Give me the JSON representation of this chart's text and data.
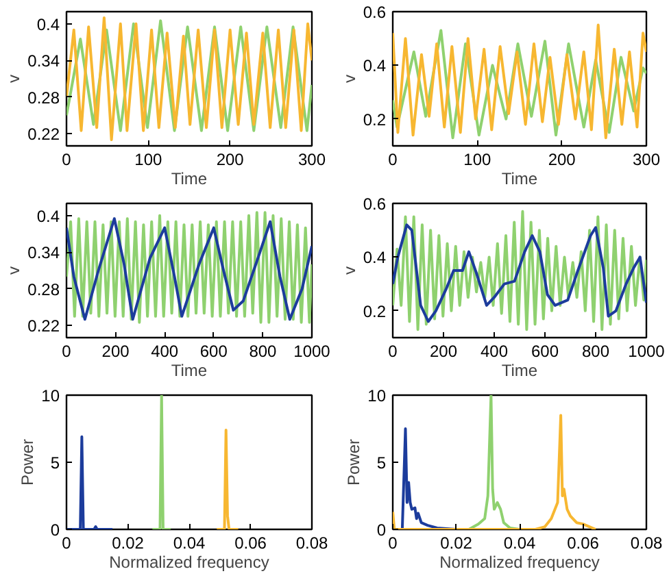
{
  "chart_data": [
    {
      "type": "line",
      "xlabel": "Time",
      "ylabel": "v",
      "xlim": [
        0,
        300
      ],
      "ylim": [
        0.2,
        0.42
      ],
      "xticks": [
        0,
        100,
        200,
        300
      ],
      "yticks": [
        0.22,
        0.28,
        0.34,
        0.4
      ],
      "series": [
        {
          "color": "#8fd16f",
          "x": [
            0,
            17,
            33,
            49,
            66,
            82,
            99,
            115,
            132,
            148,
            165,
            181,
            197,
            213,
            229,
            245,
            262,
            277,
            294,
            300
          ],
          "values": [
            0.25,
            0.375,
            0.235,
            0.39,
            0.225,
            0.4,
            0.23,
            0.405,
            0.225,
            0.395,
            0.225,
            0.395,
            0.225,
            0.395,
            0.225,
            0.395,
            0.23,
            0.395,
            0.225,
            0.3
          ]
        },
        {
          "color": "#f7b731",
          "x": [
            0,
            9,
            18,
            27,
            37,
            46,
            55,
            66,
            74,
            85,
            94,
            104,
            113,
            123,
            133,
            143,
            151,
            161,
            171,
            181,
            190,
            200,
            210,
            220,
            229,
            240,
            249,
            259,
            268,
            278,
            287,
            295,
            300
          ],
          "values": [
            0.28,
            0.39,
            0.225,
            0.395,
            0.23,
            0.41,
            0.21,
            0.4,
            0.225,
            0.4,
            0.225,
            0.39,
            0.23,
            0.385,
            0.23,
            0.38,
            0.235,
            0.39,
            0.23,
            0.39,
            0.23,
            0.39,
            0.235,
            0.385,
            0.235,
            0.385,
            0.23,
            0.39,
            0.23,
            0.39,
            0.225,
            0.4,
            0.34
          ]
        }
      ]
    },
    {
      "type": "line",
      "xlabel": "Time",
      "ylabel": "v",
      "xlim": [
        0,
        300
      ],
      "ylim": [
        0.1,
        0.6
      ],
      "xticks": [
        0,
        100,
        200,
        300
      ],
      "yticks": [
        0.2,
        0.4,
        0.6
      ],
      "series": [
        {
          "color": "#8fd16f",
          "x": [
            0,
            5,
            25,
            39,
            57,
            71,
            86,
            102,
            118,
            134,
            148,
            164,
            180,
            193,
            208,
            226,
            240,
            256,
            270,
            285,
            296,
            300
          ],
          "values": [
            0.27,
            0.17,
            0.45,
            0.21,
            0.53,
            0.13,
            0.48,
            0.14,
            0.4,
            0.2,
            0.48,
            0.21,
            0.49,
            0.14,
            0.48,
            0.17,
            0.42,
            0.15,
            0.43,
            0.23,
            0.39,
            0.37
          ]
        },
        {
          "color": "#f7b731",
          "x": [
            0,
            6,
            15,
            24,
            34,
            43,
            52,
            61,
            70,
            80,
            89,
            98,
            108,
            117,
            127,
            137,
            147,
            157,
            167,
            177,
            186,
            196,
            206,
            216,
            226,
            235,
            243,
            252,
            262,
            271,
            280,
            289,
            296,
            300
          ],
          "values": [
            0.52,
            0.15,
            0.5,
            0.14,
            0.44,
            0.21,
            0.48,
            0.17,
            0.47,
            0.15,
            0.5,
            0.2,
            0.46,
            0.16,
            0.47,
            0.22,
            0.45,
            0.18,
            0.48,
            0.19,
            0.43,
            0.18,
            0.44,
            0.2,
            0.45,
            0.16,
            0.55,
            0.13,
            0.46,
            0.18,
            0.45,
            0.17,
            0.52,
            0.45
          ]
        }
      ]
    },
    {
      "type": "line",
      "xlabel": "Time",
      "ylabel": "v",
      "xlim": [
        0,
        1000
      ],
      "ylim": [
        0.2,
        0.42
      ],
      "xticks": [
        0,
        200,
        400,
        600,
        800,
        1000
      ],
      "yticks": [
        0.22,
        0.28,
        0.34,
        0.4
      ],
      "series": [
        {
          "color": "#8fd16f",
          "x": [
            0,
            17,
            33,
            50,
            66,
            83,
            99,
            116,
            132,
            149,
            165,
            182,
            198,
            215,
            231,
            248,
            264,
            281,
            297,
            314,
            330,
            347,
            363,
            380,
            396,
            413,
            429,
            446,
            462,
            479,
            495,
            512,
            528,
            545,
            561,
            578,
            594,
            611,
            627,
            644,
            660,
            677,
            693,
            710,
            726,
            743,
            759,
            776,
            792,
            809,
            825,
            842,
            858,
            875,
            891,
            908,
            924,
            941,
            957,
            974,
            990,
            1000
          ],
          "values": [
            0.3,
            0.39,
            0.235,
            0.395,
            0.235,
            0.39,
            0.24,
            0.39,
            0.235,
            0.385,
            0.24,
            0.39,
            0.235,
            0.39,
            0.235,
            0.395,
            0.23,
            0.39,
            0.225,
            0.385,
            0.235,
            0.39,
            0.235,
            0.4,
            0.235,
            0.39,
            0.24,
            0.39,
            0.235,
            0.385,
            0.235,
            0.385,
            0.24,
            0.39,
            0.24,
            0.385,
            0.235,
            0.39,
            0.235,
            0.39,
            0.24,
            0.39,
            0.235,
            0.39,
            0.235,
            0.4,
            0.24,
            0.405,
            0.225,
            0.405,
            0.225,
            0.4,
            0.235,
            0.395,
            0.23,
            0.39,
            0.23,
            0.385,
            0.225,
            0.38,
            0.225,
            0.32
          ]
        },
        {
          "color": "#1c3c9c",
          "x": [
            0,
            30,
            75,
            130,
            195,
            235,
            270,
            340,
            400,
            440,
            470,
            540,
            600,
            640,
            680,
            720,
            780,
            830,
            870,
            910,
            960,
            1000
          ],
          "values": [
            0.38,
            0.3,
            0.23,
            0.31,
            0.395,
            0.32,
            0.23,
            0.33,
            0.38,
            0.3,
            0.235,
            0.32,
            0.38,
            0.31,
            0.245,
            0.26,
            0.33,
            0.39,
            0.3,
            0.23,
            0.28,
            0.35
          ]
        }
      ]
    },
    {
      "type": "line",
      "xlabel": "Time",
      "ylabel": "v",
      "xlim": [
        0,
        1000
      ],
      "ylim": [
        0.1,
        0.6
      ],
      "xticks": [
        0,
        200,
        400,
        600,
        800,
        1000
      ],
      "yticks": [
        0.2,
        0.4,
        0.6
      ],
      "series": [
        {
          "color": "#8fd16f",
          "x": [
            0,
            17,
            33,
            50,
            66,
            83,
            99,
            116,
            132,
            149,
            165,
            182,
            198,
            215,
            231,
            248,
            264,
            281,
            297,
            314,
            330,
            347,
            363,
            380,
            396,
            413,
            429,
            446,
            462,
            479,
            495,
            512,
            528,
            545,
            561,
            578,
            594,
            611,
            627,
            644,
            660,
            677,
            693,
            710,
            726,
            743,
            759,
            776,
            792,
            809,
            825,
            842,
            858,
            875,
            891,
            908,
            924,
            941,
            957,
            974,
            990,
            1000
          ],
          "values": [
            0.22,
            0.43,
            0.22,
            0.55,
            0.16,
            0.55,
            0.13,
            0.52,
            0.15,
            0.5,
            0.17,
            0.48,
            0.18,
            0.45,
            0.2,
            0.44,
            0.22,
            0.42,
            0.25,
            0.4,
            0.27,
            0.38,
            0.25,
            0.4,
            0.22,
            0.45,
            0.19,
            0.48,
            0.16,
            0.53,
            0.15,
            0.57,
            0.13,
            0.53,
            0.15,
            0.5,
            0.17,
            0.47,
            0.2,
            0.44,
            0.22,
            0.4,
            0.25,
            0.38,
            0.25,
            0.42,
            0.2,
            0.5,
            0.16,
            0.55,
            0.13,
            0.52,
            0.15,
            0.5,
            0.17,
            0.47,
            0.2,
            0.44,
            0.22,
            0.4,
            0.24,
            0.39
          ]
        },
        {
          "color": "#1c3c9c",
          "x": [
            0,
            20,
            55,
            75,
            110,
            140,
            170,
            210,
            240,
            275,
            300,
            330,
            370,
            400,
            440,
            480,
            520,
            550,
            580,
            610,
            640,
            690,
            730,
            780,
            800,
            830,
            850,
            880,
            920,
            950,
            975,
            1000
          ],
          "values": [
            0.3,
            0.4,
            0.52,
            0.5,
            0.22,
            0.16,
            0.2,
            0.28,
            0.35,
            0.35,
            0.42,
            0.34,
            0.22,
            0.25,
            0.3,
            0.31,
            0.42,
            0.48,
            0.42,
            0.26,
            0.22,
            0.24,
            0.35,
            0.48,
            0.51,
            0.36,
            0.18,
            0.2,
            0.3,
            0.36,
            0.4,
            0.23
          ]
        }
      ]
    },
    {
      "type": "line",
      "xlabel": "Normalized frequency",
      "ylabel": "Power",
      "xlim": [
        0,
        0.08
      ],
      "ylim": [
        0,
        10
      ],
      "xticks": [
        0,
        0.02,
        0.04,
        0.06,
        0.08
      ],
      "yticks": [
        0,
        5,
        10
      ],
      "series": [
        {
          "color": "#1c3c9c",
          "x": [
            0,
            0.0045,
            0.005,
            0.0055,
            0.009,
            0.0095,
            0.01,
            0.015
          ],
          "values": [
            0,
            0,
            6.9,
            0,
            0,
            0.2,
            0,
            0
          ]
        },
        {
          "color": "#8fd16f",
          "x": [
            0.028,
            0.0305,
            0.031,
            0.0315,
            0.034
          ],
          "values": [
            0,
            0,
            10,
            0,
            0
          ]
        },
        {
          "color": "#f7b731",
          "x": [
            0.049,
            0.0515,
            0.052,
            0.0525,
            0.053,
            0.056
          ],
          "values": [
            0,
            0,
            7.4,
            1,
            0,
            0
          ]
        }
      ]
    },
    {
      "type": "line",
      "xlabel": "Normalized frequency",
      "ylabel": "Power",
      "xlim": [
        0,
        0.08
      ],
      "ylim": [
        0,
        10
      ],
      "xticks": [
        0,
        0.02,
        0.04,
        0.06,
        0.08
      ],
      "yticks": [
        0,
        5,
        10
      ],
      "series": [
        {
          "color": "#1c3c9c",
          "x": [
            0.003,
            0.004,
            0.0045,
            0.005,
            0.0055,
            0.006,
            0.007,
            0.0075,
            0.008,
            0.009,
            0.011,
            0.014,
            0.02
          ],
          "values": [
            0,
            7.5,
            2,
            3.5,
            2,
            1.5,
            1.6,
            0.8,
            1.2,
            0.5,
            0.3,
            0.1,
            0
          ]
        },
        {
          "color": "#8fd16f",
          "x": [
            0.024,
            0.027,
            0.029,
            0.03,
            0.031,
            0.0315,
            0.032,
            0.033,
            0.034,
            0.035,
            0.037,
            0.04
          ],
          "values": [
            0,
            0.4,
            0.8,
            2.5,
            10,
            3,
            1.5,
            2,
            1.5,
            0.5,
            0.1,
            0
          ]
        },
        {
          "color": "#f7b731",
          "x": [
            0,
            0.0005,
            0.045,
            0.048,
            0.05,
            0.052,
            0.053,
            0.0535,
            0.054,
            0.055,
            0.056,
            0.058,
            0.06,
            0.062,
            0.064
          ],
          "values": [
            1.3,
            0,
            0,
            0.2,
            0.8,
            2,
            8.5,
            2.5,
            3,
            1.5,
            1,
            0.5,
            0.4,
            0.2,
            0
          ]
        }
      ]
    }
  ]
}
